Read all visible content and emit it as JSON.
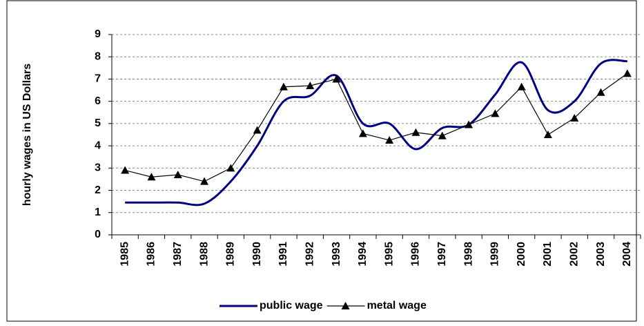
{
  "chart_data": {
    "type": "line",
    "y_label": "hourly wages in US Dollars",
    "categories": [
      "1985",
      "1986",
      "1987",
      "1988",
      "1989",
      "1990",
      "1991",
      "1992",
      "1993",
      "1994",
      "1995",
      "1996",
      "1997",
      "1998",
      "1999",
      "2000",
      "2001",
      "2002",
      "2003",
      "2004"
    ],
    "series": [
      {
        "name": "public wage",
        "color": "#000080",
        "marker": "none",
        "smooth": true,
        "values": [
          1.45,
          1.45,
          1.45,
          1.4,
          2.4,
          4.0,
          6.0,
          6.25,
          7.15,
          5.0,
          5.0,
          3.85,
          4.8,
          4.95,
          6.3,
          7.75,
          5.6,
          6.0,
          7.7,
          7.8
        ]
      },
      {
        "name": "metal wage",
        "color": "#000000",
        "marker": "triangle",
        "smooth": false,
        "values": [
          2.9,
          2.6,
          2.7,
          2.4,
          3.0,
          4.7,
          6.65,
          6.7,
          7.0,
          4.55,
          4.25,
          4.6,
          4.45,
          4.95,
          5.45,
          6.65,
          4.5,
          5.25,
          6.4,
          7.25
        ]
      }
    ],
    "ylim": [
      0,
      9
    ],
    "yticks": [
      0,
      1,
      2,
      3,
      4,
      5,
      6,
      7,
      8,
      9
    ],
    "grid": true,
    "legend": "bottom"
  }
}
